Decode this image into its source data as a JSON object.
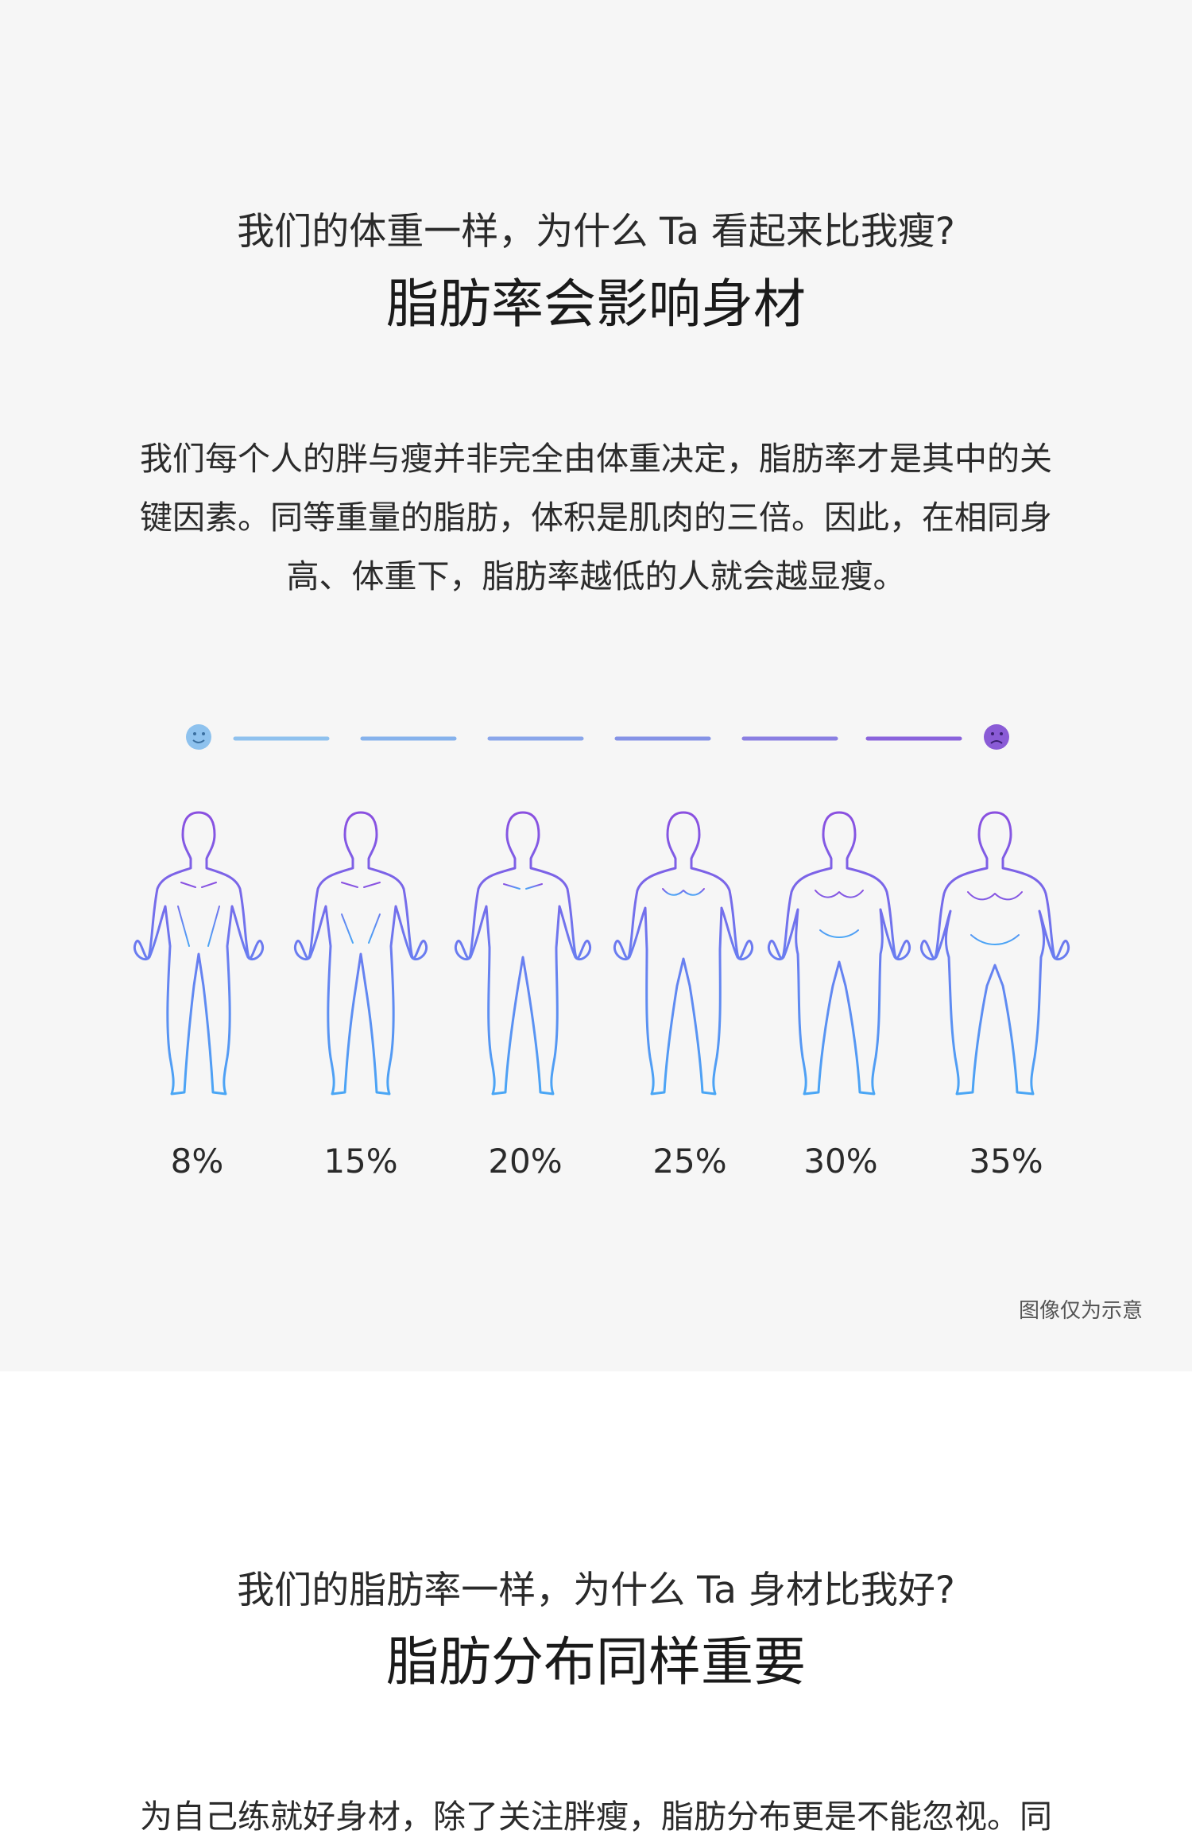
{
  "section1": {
    "subtitle": "我们的体重一样，为什么 Ta 看起来比我瘦?",
    "title": "脂肪率会影响身材",
    "paragraph": [
      "我们每个人的胖与瘦并非完全由体重决定，脂肪率才是其中的关",
      "键因素。同等重量的脂肪，体积是肌肉的三倍。因此，在相同身",
      "高、体重下，脂肪率越低的人就会越显瘦。"
    ],
    "body_fat_levels": [
      "8%",
      "15%",
      "20%",
      "25%",
      "30%",
      "35%"
    ],
    "scale_start_icon": "smile-face-icon",
    "scale_end_icon": "frown-face-icon",
    "colors": {
      "start": "#7fb8ea",
      "end": "#7a4fd8"
    },
    "note": "图像仅为示意"
  },
  "section2": {
    "subtitle": "我们的脂肪率一样，为什么 Ta 身材比我好?",
    "title": "脂肪分布同样重要",
    "paragraph": [
      "为自己练就好身材，除了关注胖瘦，脂肪分布更是不能忽视。同"
    ]
  }
}
